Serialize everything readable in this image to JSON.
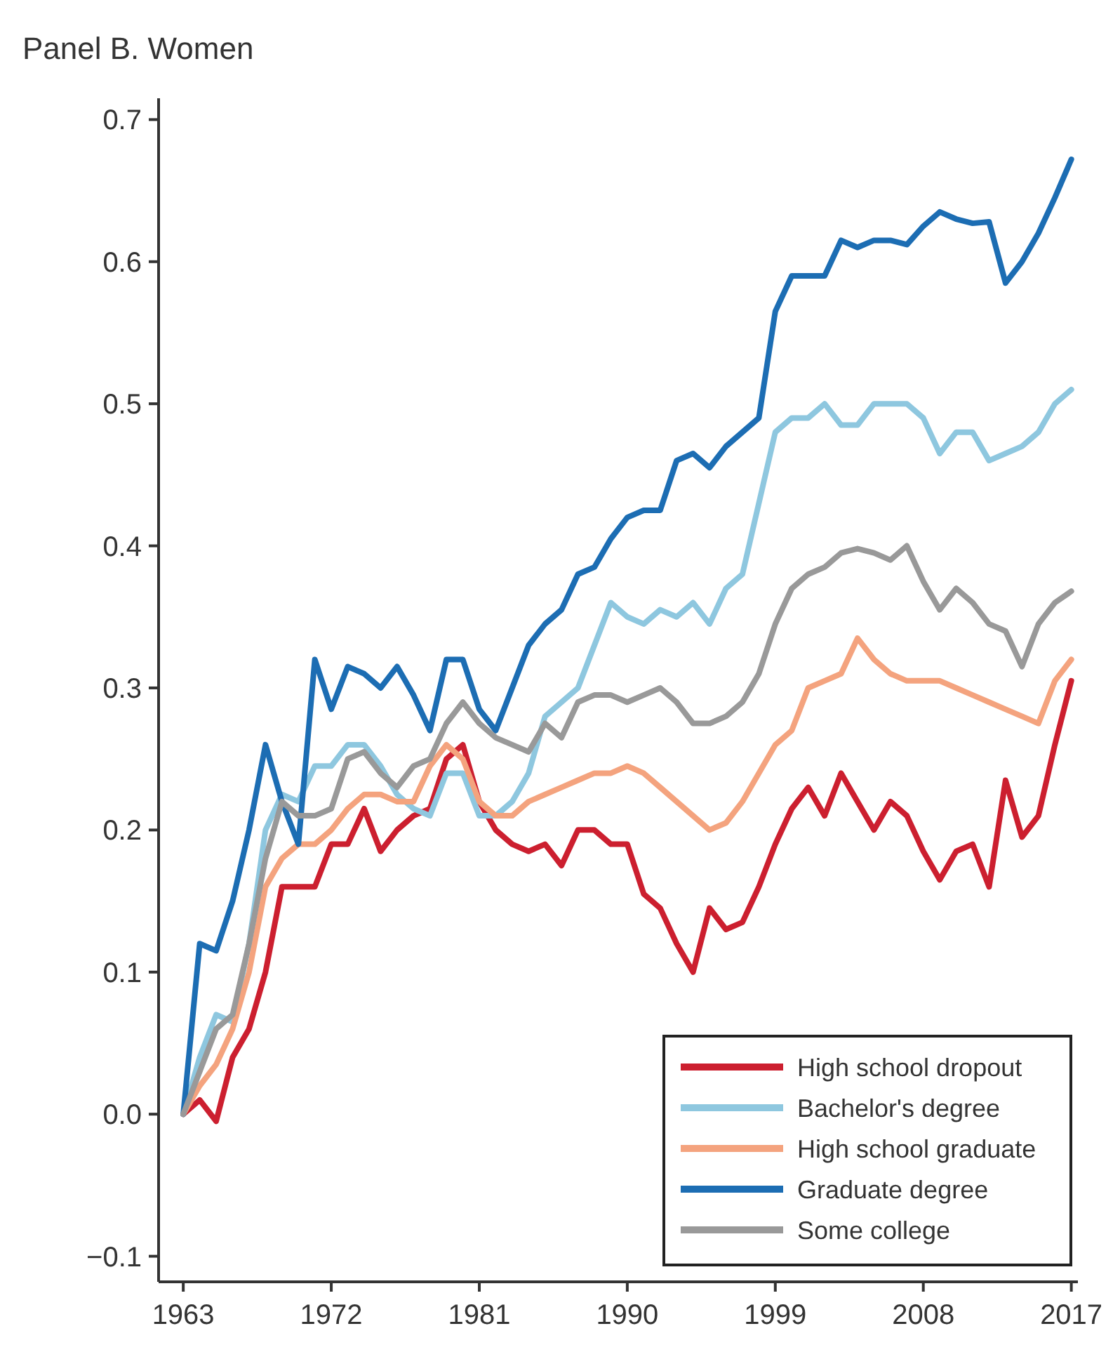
{
  "chart_data": {
    "type": "line",
    "title": "Panel B. Women",
    "x": [
      1963,
      1964,
      1965,
      1966,
      1967,
      1968,
      1969,
      1970,
      1971,
      1972,
      1973,
      1974,
      1975,
      1976,
      1977,
      1978,
      1979,
      1980,
      1981,
      1982,
      1983,
      1984,
      1985,
      1986,
      1987,
      1988,
      1989,
      1990,
      1991,
      1992,
      1993,
      1994,
      1995,
      1996,
      1997,
      1998,
      1999,
      2000,
      2001,
      2002,
      2003,
      2004,
      2005,
      2006,
      2007,
      2008,
      2009,
      2010,
      2011,
      2012,
      2013,
      2014,
      2015,
      2016,
      2017
    ],
    "series": [
      {
        "name": "High school dropout",
        "color": "#cc1f2f",
        "values": [
          0,
          0.01,
          -0.005,
          0.04,
          0.06,
          0.1,
          0.16,
          0.16,
          0.16,
          0.19,
          0.19,
          0.215,
          0.185,
          0.2,
          0.21,
          0.215,
          0.25,
          0.26,
          0.22,
          0.2,
          0.19,
          0.185,
          0.19,
          0.175,
          0.2,
          0.2,
          0.19,
          0.19,
          0.155,
          0.145,
          0.12,
          0.1,
          0.145,
          0.13,
          0.135,
          0.16,
          0.19,
          0.215,
          0.23,
          0.21,
          0.24,
          0.22,
          0.2,
          0.22,
          0.21,
          0.185,
          0.165,
          0.185,
          0.19,
          0.16,
          0.235,
          0.195,
          0.21,
          0.26,
          0.305
        ]
      },
      {
        "name": "Bachelor's degree",
        "color": "#8ec7df",
        "values": [
          0,
          0.04,
          0.07,
          0.065,
          0.12,
          0.2,
          0.225,
          0.22,
          0.245,
          0.245,
          0.26,
          0.26,
          0.245,
          0.225,
          0.215,
          0.21,
          0.24,
          0.24,
          0.21,
          0.21,
          0.22,
          0.24,
          0.28,
          0.29,
          0.3,
          0.33,
          0.36,
          0.35,
          0.345,
          0.355,
          0.35,
          0.36,
          0.345,
          0.37,
          0.38,
          0.43,
          0.48,
          0.49,
          0.49,
          0.5,
          0.485,
          0.485,
          0.5,
          0.5,
          0.5,
          0.49,
          0.465,
          0.48,
          0.48,
          0.46,
          0.465,
          0.47,
          0.48,
          0.5,
          0.51
        ]
      },
      {
        "name": "High school graduate",
        "color": "#f4a37e",
        "values": [
          0,
          0.02,
          0.035,
          0.06,
          0.1,
          0.16,
          0.18,
          0.19,
          0.19,
          0.2,
          0.215,
          0.225,
          0.225,
          0.22,
          0.22,
          0.245,
          0.26,
          0.25,
          0.22,
          0.21,
          0.21,
          0.22,
          0.225,
          0.23,
          0.235,
          0.24,
          0.24,
          0.245,
          0.24,
          0.23,
          0.22,
          0.21,
          0.2,
          0.205,
          0.22,
          0.24,
          0.26,
          0.27,
          0.3,
          0.305,
          0.31,
          0.335,
          0.32,
          0.31,
          0.305,
          0.305,
          0.305,
          0.3,
          0.295,
          0.29,
          0.285,
          0.28,
          0.275,
          0.305,
          0.32
        ]
      },
      {
        "name": "Graduate degree",
        "color": "#1c6db3",
        "values": [
          0,
          0.12,
          0.115,
          0.15,
          0.2,
          0.26,
          0.22,
          0.19,
          0.32,
          0.285,
          0.315,
          0.31,
          0.3,
          0.315,
          0.295,
          0.27,
          0.32,
          0.32,
          0.285,
          0.27,
          0.3,
          0.33,
          0.345,
          0.355,
          0.38,
          0.385,
          0.405,
          0.42,
          0.425,
          0.425,
          0.46,
          0.465,
          0.455,
          0.47,
          0.48,
          0.49,
          0.565,
          0.59,
          0.59,
          0.59,
          0.615,
          0.61,
          0.615,
          0.615,
          0.612,
          0.625,
          0.635,
          0.63,
          0.627,
          0.628,
          0.585,
          0.6,
          0.62,
          0.645,
          0.672
        ]
      },
      {
        "name": "Some college",
        "color": "#999999",
        "values": [
          0,
          0.03,
          0.06,
          0.07,
          0.12,
          0.18,
          0.22,
          0.21,
          0.21,
          0.215,
          0.25,
          0.255,
          0.24,
          0.23,
          0.245,
          0.25,
          0.275,
          0.29,
          0.275,
          0.265,
          0.26,
          0.255,
          0.275,
          0.265,
          0.29,
          0.295,
          0.295,
          0.29,
          0.295,
          0.3,
          0.29,
          0.275,
          0.275,
          0.28,
          0.29,
          0.31,
          0.345,
          0.37,
          0.38,
          0.385,
          0.395,
          0.398,
          0.395,
          0.39,
          0.4,
          0.375,
          0.355,
          0.37,
          0.36,
          0.345,
          0.34,
          0.315,
          0.345,
          0.36,
          0.368
        ]
      }
    ],
    "xlim": [
      1961.5,
      2017.4
    ],
    "xticks": [
      1963,
      1972,
      1981,
      1990,
      1999,
      2008,
      2017
    ],
    "ylim": [
      -0.118,
      0.715
    ],
    "yticks": [
      {
        "value": -0.1,
        "label": "−0.1"
      },
      {
        "value": 0,
        "label": "0.0"
      },
      {
        "value": 0.1,
        "label": "0.1"
      },
      {
        "value": 0.2,
        "label": "0.2"
      },
      {
        "value": 0.3,
        "label": "0.3"
      },
      {
        "value": 0.4,
        "label": "0.4"
      },
      {
        "value": 0.5,
        "label": "0.5"
      },
      {
        "value": 0.6,
        "label": "0.6"
      },
      {
        "value": 0.7,
        "label": "0.7"
      }
    ],
    "grid": false,
    "legend": "bottom right",
    "marker": "none",
    "line_style": "solid"
  }
}
